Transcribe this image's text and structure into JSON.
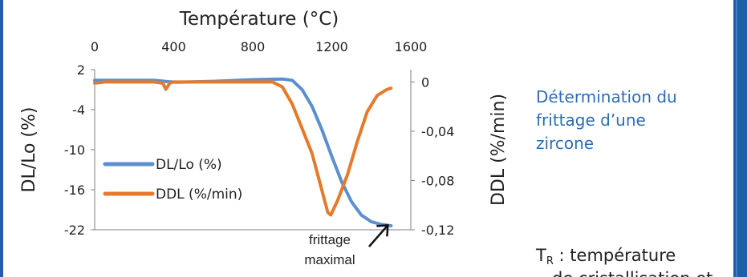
{
  "chart_data": {
    "type": "line",
    "top_axis": {
      "label": "Température (°C)",
      "ticks": [
        0,
        400,
        800,
        1200,
        1600
      ],
      "lim": [
        0,
        1600
      ]
    },
    "left_axis": {
      "label": "DL/Lo (%)",
      "ticks": [
        2,
        -4,
        -10,
        -16,
        -22
      ],
      "lim": [
        -22,
        2
      ]
    },
    "right_axis": {
      "label": "DDL (%/min)",
      "ticks": [
        "0",
        "-0,04",
        "-0,08",
        "-0,12"
      ],
      "values": [
        0,
        -0.04,
        -0.08,
        -0.12
      ],
      "lim": [
        -0.12,
        0.01
      ]
    },
    "grid": false,
    "legend_position": "bottom-left",
    "series": [
      {
        "name": "DL/Lo (%)",
        "color": "#5b8fcf",
        "axis": "left",
        "x": [
          0,
          150,
          300,
          370,
          420,
          600,
          800,
          950,
          1000,
          1050,
          1100,
          1150,
          1200,
          1250,
          1300,
          1350,
          1400,
          1450,
          1500
        ],
        "y": [
          0.4,
          0.4,
          0.4,
          0.2,
          0.1,
          0.25,
          0.5,
          0.6,
          0.4,
          -1.0,
          -3.5,
          -7.0,
          -11.0,
          -14.8,
          -17.8,
          -19.8,
          -20.8,
          -21.2,
          -21.4
        ]
      },
      {
        "name": "DDL (%/min)",
        "color": "#e57a2b",
        "axis": "right",
        "x": [
          0,
          50,
          300,
          345,
          360,
          380,
          400,
          800,
          900,
          950,
          1000,
          1050,
          1100,
          1150,
          1180,
          1195,
          1230,
          1280,
          1330,
          1380,
          1430,
          1480,
          1500
        ],
        "y": [
          -0.001,
          0.0,
          0.0,
          -0.001,
          -0.006,
          -0.001,
          0.0,
          0.0,
          0.0,
          -0.004,
          -0.018,
          -0.038,
          -0.058,
          -0.088,
          -0.106,
          -0.108,
          -0.096,
          -0.075,
          -0.048,
          -0.024,
          -0.011,
          -0.006,
          -0.005
        ]
      }
    ],
    "annotation": {
      "text_line1": "frittage",
      "text_line2": "maximal",
      "points_to_x": 1500
    }
  },
  "side_text": {
    "line1": "Détermination du",
    "line2": "frittage d’une",
    "line3": "zircone"
  },
  "bottom_note": {
    "t": "T",
    "sub": "R",
    "rest": " : température",
    "cut_line": "de cristallisation et"
  },
  "colors": {
    "frame": "#1f5fa8",
    "accent_text": "#2e6db5"
  }
}
